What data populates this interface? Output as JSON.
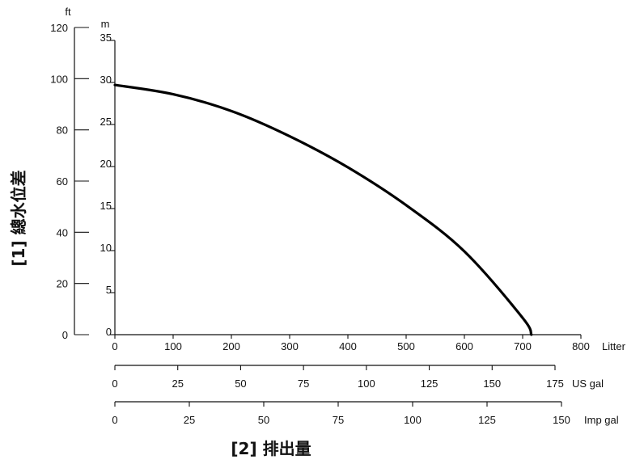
{
  "chart_data": {
    "type": "line",
    "title": "",
    "y_axes": [
      {
        "unit": "ft",
        "ticks": [
          "0",
          "20",
          "40",
          "60",
          "80",
          "100",
          "120"
        ],
        "range": [
          0,
          120
        ]
      },
      {
        "unit": "m",
        "ticks": [
          "0",
          "5",
          "10",
          "15",
          "20",
          "25",
          "30",
          "35"
        ],
        "range": [
          0,
          35
        ]
      }
    ],
    "x_axes": [
      {
        "unit": "Litter",
        "ticks": [
          "0",
          "100",
          "200",
          "300",
          "400",
          "500",
          "600",
          "700",
          "800"
        ],
        "range": [
          0,
          800
        ]
      },
      {
        "unit": "US gal",
        "ticks": [
          "0",
          "25",
          "50",
          "75",
          "100",
          "125",
          "150",
          "175"
        ],
        "range": [
          0,
          175
        ]
      },
      {
        "unit": "Imp gal",
        "ticks": [
          "0",
          "25",
          "50",
          "75",
          "100",
          "125",
          "150"
        ],
        "range": [
          0,
          150
        ]
      }
    ],
    "ylabel": "[1] 總水位差",
    "xlabel": "[2] 排出量",
    "grid": false,
    "series": [
      {
        "x": [
          0,
          100,
          200,
          300,
          400,
          500,
          600,
          700,
          715
        ],
        "y": [
          29.7,
          28.6,
          26.6,
          23.6,
          19.9,
          15.4,
          9.9,
          2.0,
          0
        ]
      }
    ]
  }
}
